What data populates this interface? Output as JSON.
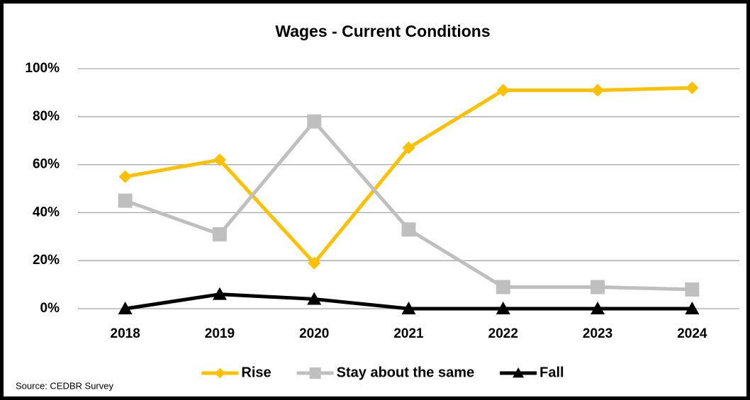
{
  "chart_data": {
    "type": "line",
    "title": "Wages - Current Conditions",
    "note": "Source: CEDBR Survey",
    "categories": [
      "2018",
      "2019",
      "2020",
      "2021",
      "2022",
      "2023",
      "2024"
    ],
    "series": [
      {
        "name": "Rise",
        "color": "#FFC000",
        "marker": "diamond",
        "values": [
          55,
          62,
          19,
          67,
          91,
          91,
          92
        ]
      },
      {
        "name": "Stay about the same",
        "color": "#BFBFBF",
        "marker": "square",
        "values": [
          45,
          31,
          78,
          33,
          9,
          9,
          8
        ]
      },
      {
        "name": "Fall",
        "color": "#000000",
        "marker": "triangle",
        "values": [
          0,
          6,
          4,
          0,
          0,
          0,
          0
        ]
      }
    ],
    "ylim": [
      0,
      100
    ],
    "yticks": [
      {
        "value": 0,
        "label": "0%"
      },
      {
        "value": 20,
        "label": "20%"
      },
      {
        "value": 40,
        "label": "40%"
      },
      {
        "value": 60,
        "label": "60%"
      },
      {
        "value": 80,
        "label": "80%"
      },
      {
        "value": 100,
        "label": "100%"
      }
    ],
    "grid": true,
    "legend": "bottom"
  }
}
